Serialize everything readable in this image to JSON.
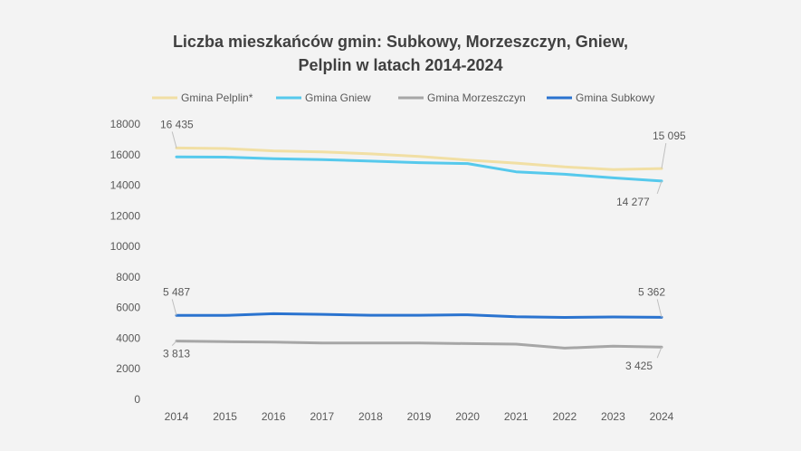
{
  "chart_data": {
    "type": "line",
    "title_lines": [
      "Liczba mieszkańców gmin: Subkowy, Morzeszczyn, Gniew,",
      "Pelplin w latach 2014-2024"
    ],
    "x": [
      "2014",
      "2015",
      "2016",
      "2017",
      "2018",
      "2019",
      "2020",
      "2021",
      "2022",
      "2023",
      "2024"
    ],
    "y_ticks": [
      "0",
      "2000",
      "4000",
      "6000",
      "8000",
      "10000",
      "12000",
      "14000",
      "16000",
      "18000"
    ],
    "ylim": [
      0,
      18000
    ],
    "grid": false,
    "legend_position": "top",
    "series": [
      {
        "name": "Gmina Pelplin*",
        "color": "#f1dfa4",
        "values": [
          16435,
          16400,
          16250,
          16180,
          16050,
          15880,
          15650,
          15450,
          15200,
          15030,
          15095
        ],
        "labels": [
          {
            "index": 0,
            "text": "16 435"
          },
          {
            "index": 10,
            "text": "15 095"
          }
        ]
      },
      {
        "name": "Gmina Gniew",
        "color": "#56c9ec",
        "values": [
          15850,
          15840,
          15740,
          15680,
          15580,
          15480,
          15420,
          14880,
          14720,
          14480,
          14277
        ],
        "labels": [
          {
            "index": 10,
            "text": "14 277"
          }
        ]
      },
      {
        "name": "Gmina Morzeszczyn",
        "color": "#a6a6a6",
        "values": [
          3813,
          3770,
          3740,
          3680,
          3680,
          3680,
          3650,
          3610,
          3350,
          3480,
          3425
        ],
        "labels": [
          {
            "index": 0,
            "text": "3 813"
          },
          {
            "index": 10,
            "text": "3 425"
          }
        ]
      },
      {
        "name": "Gmina Subkowy",
        "color": "#2a73cf",
        "values": [
          5487,
          5490,
          5600,
          5560,
          5500,
          5500,
          5530,
          5400,
          5360,
          5390,
          5362
        ],
        "labels": [
          {
            "index": 0,
            "text": "5 487"
          },
          {
            "index": 10,
            "text": "5 362"
          }
        ]
      }
    ]
  }
}
